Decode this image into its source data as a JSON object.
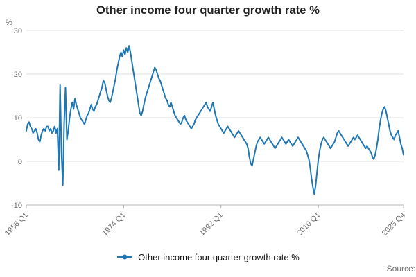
{
  "title": "Other income four quarter growth rate %",
  "y_axis_unit": "%",
  "legend": {
    "label": "Other income four quarter growth rate %"
  },
  "source": "Source:",
  "colors": {
    "line": "#1f77b4",
    "grid": "#e2e2e2",
    "axis": "#b5b5b5",
    "tick_text": "#6f6f6f",
    "title_text": "#222222"
  },
  "chart_data": {
    "type": "line",
    "title": "Other income four quarter growth rate %",
    "xlabel": "",
    "ylabel": "%",
    "ylim": [
      -10,
      30
    ],
    "yticks": [
      -10,
      0,
      10,
      20,
      30
    ],
    "grid": true,
    "legend_position": "bottom",
    "x_start": "1956 Q1",
    "x_end": "2025 Q4",
    "x_frequency": "quarterly",
    "x_tick_labels": [
      "1956 Q1",
      "1974 Q1",
      "1992 Q1",
      "2010 Q1",
      "2025 Q4"
    ],
    "x_tick_positions": [
      0,
      72,
      144,
      216,
      279
    ],
    "series": [
      {
        "name": "Other income four quarter growth rate %",
        "values": [
          7,
          8.5,
          9,
          8,
          7.5,
          6.5,
          7,
          7.5,
          6.5,
          5,
          4.5,
          6,
          7,
          7.5,
          7,
          8,
          8,
          7,
          7.5,
          6.5,
          7,
          8,
          6.5,
          7.5,
          -2,
          17.5,
          2,
          -5.5,
          9,
          17,
          5,
          7,
          10,
          12,
          13.5,
          12,
          14.5,
          13,
          12,
          11,
          10,
          9.5,
          9,
          8.5,
          9.5,
          10.5,
          11,
          12,
          13,
          12,
          11.5,
          12.5,
          13,
          14,
          15,
          16,
          17,
          18.5,
          18,
          16.5,
          15,
          14,
          13.5,
          14.5,
          16,
          17.5,
          19,
          21,
          22.5,
          24,
          25,
          24,
          25.5,
          24.5,
          26,
          25,
          26.5,
          25,
          23,
          21,
          19,
          17,
          15,
          13,
          11,
          10.5,
          11.5,
          13,
          14.5,
          15.5,
          16.5,
          17.5,
          18.5,
          19.5,
          20.5,
          21.5,
          21,
          20,
          19,
          18.5,
          17.5,
          16.5,
          15.5,
          14.5,
          14,
          13,
          12.5,
          13.5,
          12.5,
          11.5,
          10.5,
          10,
          9.5,
          9,
          8.5,
          9,
          10,
          10.5,
          9.5,
          9,
          8.5,
          8,
          7.5,
          8,
          8.5,
          9.5,
          10,
          10.5,
          11,
          11.5,
          12,
          12.5,
          13,
          13.5,
          12.5,
          12,
          11.5,
          12.5,
          13.5,
          12,
          10.5,
          9.5,
          8.5,
          8,
          7.5,
          7,
          6.5,
          7,
          7.5,
          8,
          7.5,
          7,
          6.5,
          6,
          5.5,
          6,
          6.5,
          7,
          6.5,
          6,
          5.5,
          5,
          4.5,
          4,
          3,
          1,
          -0.5,
          -1,
          0.5,
          2,
          3.5,
          4.5,
          5,
          5.5,
          5,
          4.5,
          4,
          4.5,
          5,
          5.5,
          5,
          4.5,
          4,
          3.5,
          3,
          3.5,
          4,
          4.5,
          5,
          5.5,
          5,
          4.5,
          4,
          4.5,
          5,
          4.5,
          4,
          3.5,
          4,
          4.5,
          5,
          5.5,
          5,
          4.5,
          4,
          3.5,
          3,
          2.5,
          1.5,
          0.5,
          -1.5,
          -4,
          -6,
          -7.5,
          -5.5,
          -2.5,
          0.5,
          2.5,
          4,
          5,
          5.5,
          5,
          4.5,
          4,
          3.5,
          3,
          3.5,
          4,
          4.5,
          5.5,
          6.5,
          7,
          6.5,
          6,
          5.5,
          5,
          4.5,
          4,
          3.5,
          4,
          4.5,
          5,
          5.5,
          5,
          5.5,
          6,
          5.5,
          5,
          4.5,
          4,
          3.5,
          3,
          3.5,
          3,
          2.5,
          2,
          1,
          0.5,
          1.5,
          3,
          5,
          7.5,
          9.5,
          11,
          12,
          12.5,
          11.5,
          10,
          8.5,
          7,
          6,
          5.5,
          5,
          6,
          6.5,
          7,
          5.5,
          4,
          3,
          1.5
        ]
      }
    ]
  }
}
